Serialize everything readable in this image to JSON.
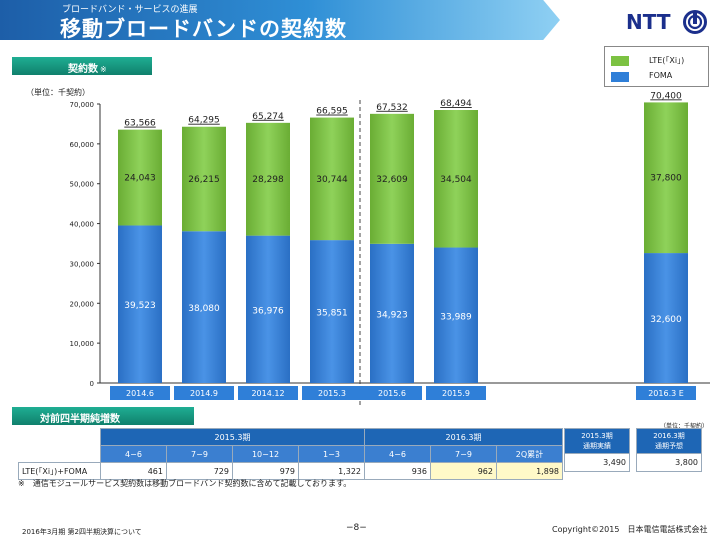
{
  "header": {
    "subtitle": "ブロードバンド・サービスの進展",
    "title": "移動ブロードバンドの契約数",
    "logo_text": "NTT"
  },
  "section1": {
    "label": "契約数",
    "note": "※",
    "unit": "（単位：千契約）"
  },
  "section2": {
    "label": "対前四半期純増数",
    "unit": "（単位：千契約）"
  },
  "colors": {
    "lte": "#7cc242",
    "foma": "#2f7fd8",
    "header": "#1e66b5",
    "section": "#16947d"
  },
  "chart_data": {
    "type": "bar",
    "stacked": true,
    "categories": [
      "2014.6",
      "2014.9",
      "2014.12",
      "2015.3",
      "2015.6",
      "2015.9",
      "2016.3 E"
    ],
    "series": [
      {
        "name": "FOMA",
        "values": [
          39523,
          38080,
          36976,
          35851,
          34923,
          33989,
          32600
        ]
      },
      {
        "name": "LTE(「Xi」)",
        "values": [
          24043,
          26215,
          28298,
          30744,
          32609,
          34504,
          37800
        ]
      }
    ],
    "totals": [
      63566,
      64295,
      65274,
      66595,
      67532,
      68494,
      70400
    ],
    "yticks": [
      0,
      10000,
      20000,
      30000,
      40000,
      50000,
      60000,
      70000
    ],
    "ytick_labels": [
      "0",
      "10,000",
      "20,000",
      "30,000",
      "40,000",
      "50,000",
      "60,000",
      "70,000"
    ],
    "value_labels": {
      "FOMA": [
        "39,523",
        "38,080",
        "36,976",
        "35,851",
        "34,923",
        "33,989",
        "32,600"
      ],
      "LTE": [
        "24,043",
        "26,215",
        "28,298",
        "30,744",
        "32,609",
        "34,504",
        "37,800"
      ],
      "totals": [
        "63,566",
        "64,295",
        "65,274",
        "66,595",
        "67,532",
        "68,494",
        "70,400"
      ]
    },
    "ylim": [
      0,
      70000
    ],
    "legend": {
      "placement": "top-right",
      "entries": [
        "LTE(「Xi」)",
        "FOMA"
      ]
    },
    "grid": false
  },
  "table": {
    "period_2015": "2015.3期",
    "period_2016": "2016.3期",
    "quarters": [
      "4−6",
      "7−9",
      "10−12",
      "1−3",
      "4−6",
      "7−9",
      "2Q累計"
    ],
    "row_label": "LTE(「Xi」)+FOMA",
    "values": [
      "461",
      "729",
      "979",
      "1,322",
      "936",
      "962",
      "1,898"
    ],
    "actual_header_1": "2015.3期",
    "actual_header_2": "通期実績",
    "actual_value": "3,490",
    "forecast_header_1": "2016.3期",
    "forecast_header_2": "通期予想",
    "forecast_value": "3,800"
  },
  "footnote": "※　通信モジュールサービス契約数は移動ブロードバンド契約数に含めて記載しております。",
  "footer": {
    "left": "2016年3月期 第2四半期決算について",
    "page": "−8−",
    "copyright": "Copyright©2015　日本電信電話株式会社"
  }
}
